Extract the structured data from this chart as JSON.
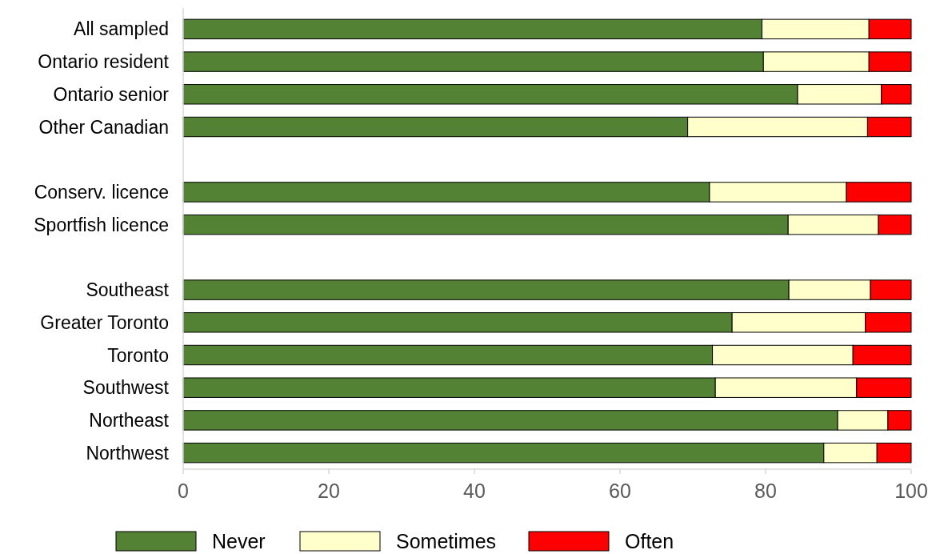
{
  "chart_data": {
    "type": "bar",
    "orientation": "horizontal",
    "stacked": true,
    "categories": [
      "All sampled",
      "Ontario resident",
      "Ontario senior",
      "Other Canadian",
      null,
      "Conserv. licence",
      "Sportfish licence",
      null,
      "Southeast",
      "Greater Toronto",
      "Toronto",
      "Southwest",
      "Northeast",
      "Northwest"
    ],
    "series": [
      {
        "name": "Never",
        "color": "#548235",
        "values": [
          79.5,
          79.7,
          84.4,
          69.3,
          null,
          72.3,
          83.1,
          null,
          83.2,
          75.4,
          72.7,
          73.1,
          89.9,
          88.0
        ]
      },
      {
        "name": "Sometimes",
        "color": "#ffffcc",
        "values": [
          14.7,
          14.5,
          11.5,
          24.7,
          null,
          18.8,
          12.4,
          null,
          11.2,
          18.3,
          19.3,
          19.4,
          6.9,
          7.3
        ]
      },
      {
        "name": "Often",
        "color": "#ff0000",
        "values": [
          5.8,
          5.8,
          4.1,
          6.0,
          null,
          8.9,
          4.5,
          null,
          5.6,
          6.3,
          8.0,
          7.5,
          3.2,
          4.7
        ]
      }
    ],
    "xlim": [
      0,
      100
    ],
    "xticks": [
      0,
      20,
      40,
      60,
      80,
      100
    ],
    "grid": false,
    "legend": "bottom"
  }
}
